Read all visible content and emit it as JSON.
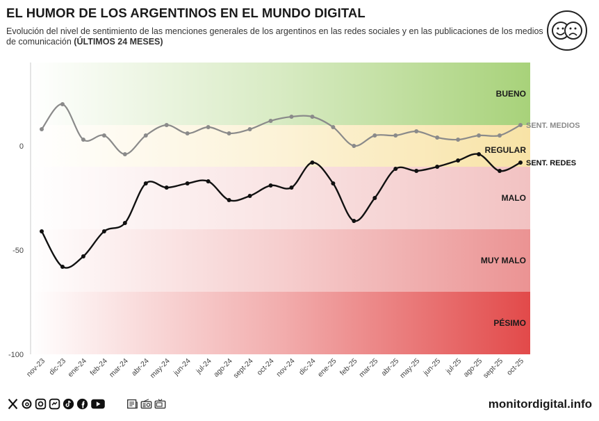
{
  "header": {
    "title": "EL HUMOR DE LOS ARGENTINOS EN EL MUNDO DIGITAL",
    "subtitle_main": "Evolución del nivel de sentimiento de las menciones generales de los argentinos en las redes sociales y en las publicaciones de los medios de comunicación",
    "subtitle_bold": "(ÚLTIMOS 24 MESES)"
  },
  "footer": {
    "site": "monitordigital.info",
    "social_icons": [
      "x-icon",
      "threads-icon",
      "instagram-icon",
      "facebook-messenger-icon",
      "tiktok-icon",
      "facebook-icon",
      "youtube-icon"
    ],
    "media_icons": [
      "newspaper-icon",
      "radio-icon",
      "tv-icon"
    ]
  },
  "chart_data": {
    "type": "line",
    "categories": [
      "nov-23",
      "dic-23",
      "ene-24",
      "feb-24",
      "mar-24",
      "abr-24",
      "may-24",
      "jun-24",
      "jul-24",
      "ago-24",
      "sept-24",
      "oct-24",
      "nov-24",
      "dic-24",
      "ene-25",
      "feb-25",
      "mar-25",
      "abr-25",
      "may-25",
      "jun-25",
      "jul-25",
      "ago-25",
      "sept-25",
      "oct-25"
    ],
    "series": [
      {
        "name": "SENT. MEDIOS",
        "color": "#8a8a8a",
        "values": [
          8,
          20,
          3,
          5,
          -4,
          5,
          10,
          6,
          9,
          6,
          8,
          12,
          14,
          14,
          9,
          0,
          5,
          5,
          7,
          4,
          3,
          5,
          5,
          10
        ]
      },
      {
        "name": "SENT. REDES",
        "color": "#111111",
        "values": [
          -41,
          -58,
          -53,
          -41,
          -37,
          -18,
          -20,
          -18,
          -17,
          -26,
          -24,
          -19,
          -20,
          -8,
          -18,
          -36,
          -25,
          -11,
          -12,
          -10,
          -7,
          -4,
          -12,
          -8
        ]
      }
    ],
    "bands": [
      {
        "label": "BUENO",
        "from": 10,
        "to": 40,
        "color": "#a8d27a"
      },
      {
        "label": "REGULAR",
        "from": -10,
        "to": 10,
        "color": "#f8e3a6"
      },
      {
        "label": "MALO",
        "from": -40,
        "to": -10,
        "color": "#f2c2c2"
      },
      {
        "label": "MUY MALO",
        "from": -70,
        "to": -40,
        "color": "#eb9393"
      },
      {
        "label": "PÉSIMO",
        "from": -100,
        "to": -70,
        "color": "#e24a4a"
      }
    ],
    "yticks": [
      "0",
      "-50",
      "-100"
    ],
    "ylim": [
      -100,
      40
    ],
    "legend": "right, at line ends",
    "grid": false
  }
}
